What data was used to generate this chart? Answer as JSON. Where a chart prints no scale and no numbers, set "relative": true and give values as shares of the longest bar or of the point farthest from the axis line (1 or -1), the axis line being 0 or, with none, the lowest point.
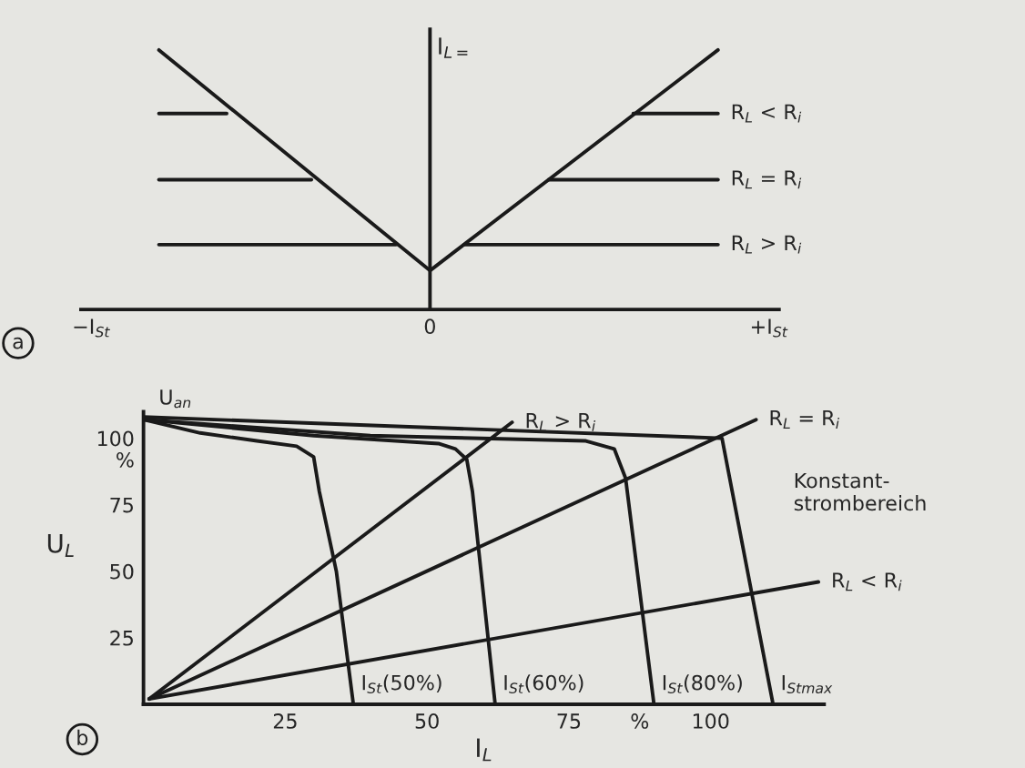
{
  "chart_data": [
    {
      "type": "line",
      "relative": true,
      "ylabel": "I$_{L=}$",
      "categories": [
        "−I$_{St}$",
        null,
        null,
        null,
        null,
        null,
        null,
        null,
        null,
        null,
        null,
        null,
        null,
        null,
        null,
        null,
        null,
        null,
        null,
        null,
        "0",
        null,
        null,
        null,
        null,
        null,
        null,
        null,
        null,
        null,
        null,
        null,
        null,
        null,
        null,
        null,
        null,
        null,
        null,
        null,
        "+I$_{St}$"
      ],
      "tick_labels": "x",
      "grid": false,
      "legend": false,
      "annotations": [
        "a"
      ],
      "series": [
        {
          "color": "#1a1a1a",
          "values": [
            null,
            null,
            null,
            null,
            1,
            null,
            null,
            null,
            null,
            null,
            null,
            null,
            null,
            null,
            null,
            null,
            null,
            null,
            null,
            null,
            0.15,
            null,
            null,
            null,
            null,
            null,
            null,
            null,
            null,
            null,
            null,
            null,
            null,
            null,
            null,
            null,
            null,
            1,
            null,
            null,
            null
          ]
        },
        {
          "color": "#1a1a1a",
          "values": [
            null,
            null,
            null,
            null,
            0.755,
            null,
            null,
            null,
            0.755,
            null,
            null,
            null,
            null,
            null,
            null,
            null,
            null,
            null,
            null,
            null,
            null,
            null,
            null,
            null,
            null,
            null,
            null,
            null,
            null,
            null,
            null,
            null,
            null,
            null,
            null,
            null,
            null,
            null,
            null,
            null,
            null
          ]
        },
        {
          "name": "R$_{L}$ < R$_{i}$",
          "color": "#1a1a1a",
          "values": [
            null,
            null,
            null,
            null,
            null,
            null,
            null,
            null,
            null,
            null,
            null,
            null,
            null,
            null,
            null,
            null,
            null,
            null,
            null,
            null,
            null,
            null,
            null,
            null,
            null,
            null,
            null,
            null,
            null,
            null,
            null,
            null,
            0.755,
            null,
            null,
            null,
            null,
            0.755,
            null,
            null,
            null
          ]
        },
        {
          "color": "#1a1a1a",
          "values": [
            null,
            null,
            null,
            null,
            0.5,
            null,
            null,
            null,
            null,
            null,
            null,
            null,
            null,
            0.5,
            null,
            null,
            null,
            null,
            null,
            null,
            null,
            null,
            null,
            null,
            null,
            null,
            null,
            null,
            null,
            null,
            null,
            null,
            null,
            null,
            null,
            null,
            null,
            null,
            null,
            null,
            null
          ]
        },
        {
          "name": "R$_{L}$ = R$_{i}$",
          "color": "#1a1a1a",
          "values": [
            null,
            null,
            null,
            null,
            null,
            null,
            null,
            null,
            null,
            null,
            null,
            null,
            null,
            null,
            null,
            null,
            null,
            null,
            null,
            null,
            null,
            null,
            null,
            null,
            null,
            null,
            null,
            0.5,
            null,
            null,
            null,
            null,
            null,
            null,
            null,
            null,
            null,
            0.5,
            null,
            null,
            null
          ]
        },
        {
          "color": "#1a1a1a",
          "values": [
            null,
            null,
            null,
            null,
            0.25,
            null,
            null,
            null,
            null,
            null,
            null,
            null,
            null,
            null,
            null,
            null,
            null,
            null,
            0.25,
            null,
            null,
            null,
            null,
            null,
            null,
            null,
            null,
            null,
            null,
            null,
            null,
            null,
            null,
            null,
            null,
            null,
            null,
            null,
            null,
            null,
            null
          ]
        },
        {
          "name": "R$_{L}$ > R$_{i}$",
          "color": "#1a1a1a",
          "values": [
            null,
            null,
            null,
            null,
            null,
            null,
            null,
            null,
            null,
            null,
            null,
            null,
            null,
            null,
            null,
            null,
            null,
            null,
            null,
            null,
            null,
            null,
            0.25,
            null,
            null,
            null,
            null,
            null,
            null,
            null,
            null,
            null,
            null,
            null,
            null,
            null,
            null,
            0.25,
            null,
            null,
            null
          ]
        }
      ]
    },
    {
      "type": "line",
      "xlabel": "I$_{L}$",
      "ylabel": "U$_{L}$",
      "xlim": [
        0,
        120
      ],
      "ylim": [
        0,
        110
      ],
      "xticks": [
        25,
        50,
        75,
        {
          "value": 87.5,
          "label": "%"
        },
        100
      ],
      "yticks": [
        25,
        50,
        75,
        {
          "value": 92,
          "label": "%"
        },
        100
      ],
      "grid": false,
      "legend": false,
      "annotations": [
        "b",
        {
          "text": "U$_{an}$",
          "x": 0,
          "y": 107
        },
        "Konstant-\nstrombereich"
      ],
      "series": [
        {
          "name": "I$_{St}$(50%)",
          "color": "#1a1a1a",
          "x": [
            0,
            10,
            20,
            27,
            30,
            31,
            34,
            37
          ],
          "values": [
            107,
            102,
            99,
            97,
            93,
            80,
            50,
            0
          ]
        },
        {
          "name": "I$_{St}$(60%)",
          "color": "#1a1a1a",
          "x": [
            0,
            30,
            52,
            55,
            57,
            58,
            62
          ],
          "values": [
            107,
            101,
            98,
            96,
            92,
            80,
            0
          ]
        },
        {
          "name": "I$_{St}$(80%)",
          "color": "#1a1a1a",
          "x": [
            0,
            40,
            78,
            83,
            85,
            90
          ],
          "values": [
            107,
            101,
            99,
            96,
            85,
            0
          ]
        },
        {
          "name": "I$_{Stmax}$",
          "color": "#1a1a1a",
          "x": [
            0,
            102,
            111
          ],
          "values": [
            108,
            100,
            0
          ]
        },
        {
          "name": "R$_{L}$ > R$_{i}$",
          "color": "#1a1a1a",
          "x": [
            1,
            65
          ],
          "values": [
            2,
            106
          ]
        },
        {
          "name": "R$_{L}$ = R$_{i}$",
          "color": "#1a1a1a",
          "x": [
            1,
            108
          ],
          "values": [
            2,
            107
          ]
        },
        {
          "name": "R$_{L}$ < R$_{i}$",
          "color": "#1a1a1a",
          "x": [
            1,
            119
          ],
          "values": [
            2,
            46
          ]
        }
      ]
    }
  ]
}
